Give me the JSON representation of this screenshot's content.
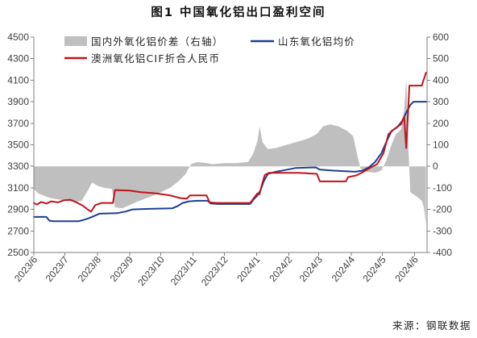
{
  "source": "来源：钢联数据",
  "chart_data": {
    "type": "line",
    "title": "图1 中国氧化铝出口盈利空间",
    "legend": "top-left",
    "grid": false,
    "x_range": [
      "2023-06-01",
      "2024-06-13"
    ],
    "x_ticks": [
      "2023/6",
      "2023/7",
      "2023/8",
      "2023/9",
      "2023/10",
      "2023/11",
      "2023/12",
      "2024/1",
      "2024/2",
      "2024/3",
      "2024/4",
      "2024/5",
      "2024/6"
    ],
    "y_left": {
      "range": [
        2500,
        4500
      ],
      "ticks": [
        4500,
        4300,
        4100,
        3900,
        3700,
        3500,
        3300,
        3100,
        2900,
        2700,
        2500
      ]
    },
    "y_right": {
      "range": [
        -400,
        600
      ],
      "ticks": [
        600,
        500,
        400,
        300,
        200,
        100,
        0,
        -100,
        -200,
        -300,
        -400
      ]
    },
    "series": [
      {
        "name": "国内外氧化铝价差（右轴）",
        "type": "area",
        "axis": "right",
        "color": "#bfbfbf",
        "points": [
          [
            "2023-06-01",
            -105
          ],
          [
            "2023-06-05",
            -125
          ],
          [
            "2023-06-10",
            -135
          ],
          [
            "2023-06-15",
            -145
          ],
          [
            "2023-06-20",
            -150
          ],
          [
            "2023-06-26",
            -155
          ],
          [
            "2023-07-03",
            -160
          ],
          [
            "2023-07-10",
            -165
          ],
          [
            "2023-07-17",
            -160
          ],
          [
            "2023-07-22",
            -120
          ],
          [
            "2023-07-27",
            -75
          ],
          [
            "2023-08-01",
            -90
          ],
          [
            "2023-08-08",
            -100
          ],
          [
            "2023-08-15",
            -105
          ],
          [
            "2023-08-18",
            -190
          ],
          [
            "2023-08-25",
            -195
          ],
          [
            "2023-09-01",
            -180
          ],
          [
            "2023-09-08",
            -165
          ],
          [
            "2023-09-16",
            -150
          ],
          [
            "2023-09-24",
            -135
          ],
          [
            "2023-10-01",
            -120
          ],
          [
            "2023-10-10",
            -100
          ],
          [
            "2023-10-18",
            -70
          ],
          [
            "2023-10-25",
            -35
          ],
          [
            "2023-10-30",
            10
          ],
          [
            "2023-11-05",
            20
          ],
          [
            "2023-11-14",
            15
          ],
          [
            "2023-11-20",
            10
          ],
          [
            "2023-12-01",
            15
          ],
          [
            "2023-12-12",
            15
          ],
          [
            "2023-12-24",
            20
          ],
          [
            "2023-12-29",
            60
          ],
          [
            "2024-01-02",
            120
          ],
          [
            "2024-01-04",
            185
          ],
          [
            "2024-01-07",
            110
          ],
          [
            "2024-01-12",
            80
          ],
          [
            "2024-01-20",
            85
          ],
          [
            "2024-01-30",
            100
          ],
          [
            "2024-02-10",
            115
          ],
          [
            "2024-02-20",
            130
          ],
          [
            "2024-02-28",
            150
          ],
          [
            "2024-03-05",
            185
          ],
          [
            "2024-03-12",
            195
          ],
          [
            "2024-03-20",
            185
          ],
          [
            "2024-03-28",
            165
          ],
          [
            "2024-04-03",
            140
          ],
          [
            "2024-04-07",
            50
          ],
          [
            "2024-04-10",
            -10
          ],
          [
            "2024-04-16",
            -25
          ],
          [
            "2024-04-24",
            -30
          ],
          [
            "2024-04-30",
            -20
          ],
          [
            "2024-05-05",
            30
          ],
          [
            "2024-05-09",
            90
          ],
          [
            "2024-05-14",
            150
          ],
          [
            "2024-05-19",
            170
          ],
          [
            "2024-05-22",
            260
          ],
          [
            "2024-05-24",
            410
          ],
          [
            "2024-05-26",
            90
          ],
          [
            "2024-05-28",
            -120
          ],
          [
            "2024-06-03",
            -140
          ],
          [
            "2024-06-08",
            -160
          ],
          [
            "2024-06-10",
            -190
          ],
          [
            "2024-06-12",
            -270
          ]
        ]
      },
      {
        "name": "山东氧化铝均价",
        "type": "line",
        "axis": "left",
        "color": "#1c3f94",
        "points": [
          [
            "2023-06-01",
            2830
          ],
          [
            "2023-06-13",
            2830
          ],
          [
            "2023-06-16",
            2795
          ],
          [
            "2023-06-20",
            2790
          ],
          [
            "2023-07-14",
            2790
          ],
          [
            "2023-07-18",
            2800
          ],
          [
            "2023-07-23",
            2815
          ],
          [
            "2023-07-28",
            2835
          ],
          [
            "2023-08-03",
            2860
          ],
          [
            "2023-08-20",
            2865
          ],
          [
            "2023-08-28",
            2880
          ],
          [
            "2023-09-04",
            2900
          ],
          [
            "2023-09-20",
            2905
          ],
          [
            "2023-10-12",
            2910
          ],
          [
            "2023-10-17",
            2930
          ],
          [
            "2023-10-22",
            2960
          ],
          [
            "2023-10-28",
            2975
          ],
          [
            "2023-11-05",
            2980
          ],
          [
            "2023-11-15",
            2980
          ],
          [
            "2023-11-18",
            2955
          ],
          [
            "2023-11-25",
            2950
          ],
          [
            "2023-12-26",
            2950
          ],
          [
            "2023-12-29",
            2990
          ],
          [
            "2024-01-02",
            3030
          ],
          [
            "2024-01-05",
            3080
          ],
          [
            "2024-01-08",
            3160
          ],
          [
            "2024-01-12",
            3230
          ],
          [
            "2024-01-20",
            3250
          ],
          [
            "2024-01-31",
            3270
          ],
          [
            "2024-02-08",
            3285
          ],
          [
            "2024-02-27",
            3290
          ],
          [
            "2024-03-02",
            3270
          ],
          [
            "2024-03-15",
            3260
          ],
          [
            "2024-04-05",
            3250
          ],
          [
            "2024-04-12",
            3260
          ],
          [
            "2024-04-18",
            3290
          ],
          [
            "2024-04-24",
            3340
          ],
          [
            "2024-04-30",
            3420
          ],
          [
            "2024-05-05",
            3530
          ],
          [
            "2024-05-10",
            3630
          ],
          [
            "2024-05-15",
            3660
          ],
          [
            "2024-05-20",
            3720
          ],
          [
            "2024-05-24",
            3800
          ],
          [
            "2024-05-28",
            3870
          ],
          [
            "2024-05-31",
            3900
          ],
          [
            "2024-06-12",
            3900
          ]
        ]
      },
      {
        "name": "澳洲氧化铝CIF折合人民币",
        "type": "line",
        "axis": "left",
        "color": "#c0141c",
        "points": [
          [
            "2023-06-01",
            2960
          ],
          [
            "2023-06-04",
            2945
          ],
          [
            "2023-06-08",
            2970
          ],
          [
            "2023-06-13",
            2955
          ],
          [
            "2023-06-18",
            2975
          ],
          [
            "2023-06-24",
            2965
          ],
          [
            "2023-06-30",
            2985
          ],
          [
            "2023-07-06",
            2990
          ],
          [
            "2023-07-12",
            2965
          ],
          [
            "2023-07-18",
            2935
          ],
          [
            "2023-07-22",
            2905
          ],
          [
            "2023-07-26",
            2880
          ],
          [
            "2023-07-30",
            2940
          ],
          [
            "2023-08-05",
            2960
          ],
          [
            "2023-08-16",
            2960
          ],
          [
            "2023-08-18",
            3080
          ],
          [
            "2023-09-01",
            3075
          ],
          [
            "2023-09-12",
            3060
          ],
          [
            "2023-09-26",
            3050
          ],
          [
            "2023-10-10",
            3030
          ],
          [
            "2023-10-20",
            3005
          ],
          [
            "2023-10-26",
            3000
          ],
          [
            "2023-10-29",
            3030
          ],
          [
            "2023-11-14",
            3030
          ],
          [
            "2023-11-17",
            2965
          ],
          [
            "2023-11-24",
            2960
          ],
          [
            "2023-12-26",
            2960
          ],
          [
            "2023-12-29",
            3000
          ],
          [
            "2024-01-02",
            3050
          ],
          [
            "2024-01-04",
            3040
          ],
          [
            "2024-01-06",
            3120
          ],
          [
            "2024-01-09",
            3220
          ],
          [
            "2024-01-13",
            3240
          ],
          [
            "2024-02-10",
            3240
          ],
          [
            "2024-02-28",
            3230
          ],
          [
            "2024-03-02",
            3160
          ],
          [
            "2024-03-27",
            3160
          ],
          [
            "2024-03-29",
            3200
          ],
          [
            "2024-04-06",
            3215
          ],
          [
            "2024-04-13",
            3250
          ],
          [
            "2024-04-20",
            3290
          ],
          [
            "2024-04-26",
            3320
          ],
          [
            "2024-05-02",
            3420
          ],
          [
            "2024-05-07",
            3600
          ],
          [
            "2024-05-13",
            3650
          ],
          [
            "2024-05-19",
            3690
          ],
          [
            "2024-05-22",
            3760
          ],
          [
            "2024-05-24",
            3470
          ],
          [
            "2024-05-27",
            4050
          ],
          [
            "2024-06-08",
            4050
          ],
          [
            "2024-06-12",
            4170
          ]
        ]
      }
    ]
  }
}
